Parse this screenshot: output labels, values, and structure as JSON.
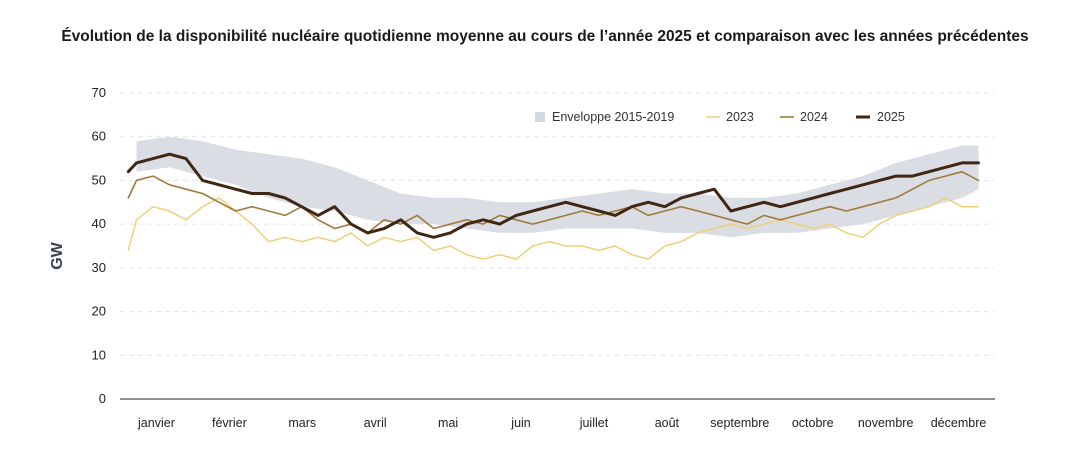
{
  "chart_data": {
    "type": "line",
    "title": "Évolution de la disponibilité nucléaire quotidienne moyenne au cours de l’année 2025 et comparaison avec les années précédentes",
    "ylabel": "GW",
    "xlabel": "",
    "ylim": [
      0,
      70
    ],
    "yticks": [
      0,
      10,
      20,
      30,
      40,
      50,
      60,
      70
    ],
    "grid": true,
    "legend_position": "top-right",
    "month_labels": [
      "janvier",
      "février",
      "mars",
      "avril",
      "mai",
      "juin",
      "juillet",
      "août",
      "septembre",
      "octobre",
      "novembre",
      "décembre"
    ],
    "x_unit": "week of year (approx.)",
    "envelope": {
      "name": "Enveloppe 2015-2019",
      "color": "#d3d7de",
      "x": [
        1,
        3,
        5,
        7,
        9,
        11,
        13,
        15,
        17,
        19,
        21,
        23,
        25,
        27,
        29,
        31,
        33,
        35,
        37,
        39,
        41,
        43,
        45,
        47,
        49,
        51,
        52
      ],
      "low": [
        52,
        53,
        51,
        49,
        46,
        44,
        43,
        41,
        40,
        40,
        39,
        38,
        38,
        39,
        39,
        39,
        38,
        38,
        37,
        38,
        38,
        39,
        40,
        42,
        44,
        46,
        48
      ],
      "high": [
        59,
        60,
        59,
        57,
        56,
        55,
        53,
        50,
        47,
        46,
        46,
        45,
        45,
        46,
        47,
        48,
        47,
        47,
        46,
        46,
        47,
        49,
        51,
        54,
        56,
        58,
        58
      ]
    },
    "series": [
      {
        "name": "2023",
        "color": "#efcf7a",
        "width": 1.5,
        "x": [
          0.5,
          1,
          2,
          3,
          4,
          5,
          6,
          7,
          8,
          9,
          10,
          11,
          12,
          13,
          14,
          15,
          16,
          17,
          18,
          19,
          20,
          21,
          22,
          23,
          24,
          25,
          26,
          27,
          28,
          29,
          30,
          31,
          32,
          33,
          34,
          35,
          36,
          37,
          38,
          39,
          40,
          41,
          42,
          43,
          44,
          45,
          46,
          47,
          48,
          49,
          50,
          51,
          52
        ],
        "values": [
          34,
          41,
          44,
          43,
          41,
          44,
          46,
          43,
          40,
          36,
          37,
          36,
          37,
          36,
          38,
          35,
          37,
          36,
          37,
          34,
          35,
          33,
          32,
          33,
          32,
          35,
          36,
          35,
          35,
          34,
          35,
          33,
          32,
          35,
          36,
          38,
          39,
          40,
          39,
          40,
          41,
          40,
          39,
          40,
          38,
          37,
          40,
          42,
          43,
          44,
          46,
          44,
          44
        ]
      },
      {
        "name": "2024",
        "color": "#a07a3c",
        "width": 1.6,
        "x": [
          0.5,
          1,
          2,
          3,
          4,
          5,
          6,
          7,
          8,
          9,
          10,
          11,
          12,
          13,
          14,
          15,
          16,
          17,
          18,
          19,
          20,
          21,
          22,
          23,
          24,
          25,
          26,
          27,
          28,
          29,
          30,
          31,
          32,
          33,
          34,
          35,
          36,
          37,
          38,
          39,
          40,
          41,
          42,
          43,
          44,
          45,
          46,
          47,
          48,
          49,
          50,
          51,
          52
        ],
        "values": [
          46,
          50,
          51,
          49,
          48,
          47,
          45,
          43,
          44,
          43,
          42,
          44,
          41,
          39,
          40,
          38,
          41,
          40,
          42,
          39,
          40,
          41,
          40,
          42,
          41,
          40,
          41,
          42,
          43,
          42,
          43,
          44,
          42,
          43,
          44,
          43,
          42,
          41,
          40,
          42,
          41,
          42,
          43,
          44,
          43,
          44,
          45,
          46,
          48,
          50,
          51,
          52,
          50
        ]
      },
      {
        "name": "2025",
        "color": "#3f2714",
        "width": 3,
        "x": [
          0.5,
          1,
          2,
          3,
          4,
          5,
          6,
          7,
          8,
          9,
          10,
          11,
          12,
          13,
          14,
          15,
          16,
          17,
          18,
          19,
          20,
          21,
          22,
          23,
          24,
          25,
          26,
          27,
          28,
          29,
          30,
          31,
          32,
          33,
          34,
          35,
          36,
          37,
          38,
          39,
          40,
          41,
          42,
          43,
          44,
          45,
          46,
          47,
          48,
          49,
          50,
          51,
          52
        ],
        "values": [
          52,
          54,
          55,
          56,
          55,
          50,
          49,
          48,
          47,
          47,
          46,
          44,
          42,
          44,
          40,
          38,
          39,
          41,
          38,
          37,
          38,
          40,
          41,
          40,
          42,
          43,
          44,
          45,
          44,
          43,
          42,
          44,
          45,
          44,
          46,
          47,
          48,
          43,
          44,
          45,
          44,
          45,
          46,
          47,
          48,
          49,
          50,
          51,
          51,
          52,
          53,
          54,
          54
        ]
      }
    ]
  }
}
